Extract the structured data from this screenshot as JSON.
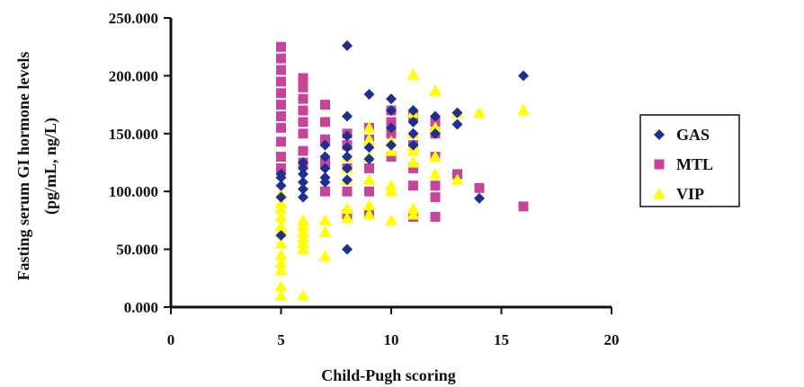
{
  "chart_data": {
    "type": "scatter",
    "xlabel": "Child-Pugh scoring",
    "ylabel_line1": "Fasting serum GI hormone levels",
    "ylabel_line2": "(pg/mL, ng/L)",
    "xlim": [
      0,
      20
    ],
    "ylim": [
      0,
      250
    ],
    "x_ticks": [
      "0",
      "5",
      "10",
      "15",
      "20"
    ],
    "y_ticks": [
      "0.000",
      "50.000",
      "100.000",
      "150.000",
      "200.000",
      "250.000"
    ],
    "grid": false,
    "legend_position": "right",
    "series": [
      {
        "name": "GAS",
        "marker": "diamond",
        "color": "#1f2f8f",
        "points": [
          [
            5,
            62
          ],
          [
            5,
            95
          ],
          [
            5,
            105
          ],
          [
            5,
            115
          ],
          [
            5,
            112
          ],
          [
            6,
            95
          ],
          [
            6,
            102
          ],
          [
            6,
            108
          ],
          [
            6,
            115
          ],
          [
            6,
            120
          ],
          [
            6,
            125
          ],
          [
            7,
            108
          ],
          [
            7,
            112
          ],
          [
            7,
            120
          ],
          [
            7,
            130
          ],
          [
            7,
            140
          ],
          [
            8,
            50
          ],
          [
            8,
            110
          ],
          [
            8,
            120
          ],
          [
            8,
            130
          ],
          [
            8,
            138
          ],
          [
            8,
            148
          ],
          [
            8,
            165
          ],
          [
            8,
            226
          ],
          [
            9,
            128
          ],
          [
            9,
            138
          ],
          [
            9,
            184
          ],
          [
            10,
            140
          ],
          [
            10,
            155
          ],
          [
            10,
            170
          ],
          [
            10,
            180
          ],
          [
            11,
            140
          ],
          [
            11,
            150
          ],
          [
            11,
            160
          ],
          [
            11,
            170
          ],
          [
            12,
            150
          ],
          [
            12,
            165
          ],
          [
            13,
            158
          ],
          [
            13,
            168
          ],
          [
            14,
            94
          ],
          [
            16,
            200
          ]
        ]
      },
      {
        "name": "MTL",
        "marker": "square",
        "color": "#c8449a",
        "points": [
          [
            5,
            225
          ],
          [
            5,
            215
          ],
          [
            5,
            205
          ],
          [
            5,
            195
          ],
          [
            5,
            185
          ],
          [
            5,
            175
          ],
          [
            5,
            165
          ],
          [
            5,
            155
          ],
          [
            5,
            143
          ],
          [
            5,
            130
          ],
          [
            5,
            120
          ],
          [
            6,
            198
          ],
          [
            6,
            190
          ],
          [
            6,
            180
          ],
          [
            6,
            170
          ],
          [
            6,
            160
          ],
          [
            6,
            150
          ],
          [
            6,
            135
          ],
          [
            6,
            125
          ],
          [
            7,
            175
          ],
          [
            7,
            160
          ],
          [
            7,
            145
          ],
          [
            7,
            125
          ],
          [
            7,
            100
          ],
          [
            8,
            150
          ],
          [
            8,
            140
          ],
          [
            8,
            120
          ],
          [
            8,
            100
          ],
          [
            8,
            80
          ],
          [
            9,
            155
          ],
          [
            9,
            145
          ],
          [
            9,
            120
          ],
          [
            9,
            100
          ],
          [
            9,
            80
          ],
          [
            10,
            170
          ],
          [
            10,
            160
          ],
          [
            10,
            150
          ],
          [
            10,
            130
          ],
          [
            11,
            165
          ],
          [
            11,
            140
          ],
          [
            11,
            120
          ],
          [
            11,
            105
          ],
          [
            11,
            78
          ],
          [
            12,
            160
          ],
          [
            12,
            150
          ],
          [
            12,
            130
          ],
          [
            12,
            105
          ],
          [
            12,
            95
          ],
          [
            12,
            78
          ],
          [
            13,
            115
          ],
          [
            14,
            103
          ],
          [
            16,
            87
          ]
        ]
      },
      {
        "name": "VIP",
        "marker": "triangle",
        "color": "#ffff00",
        "points": [
          [
            5,
            98
          ],
          [
            5,
            90
          ],
          [
            5,
            85
          ],
          [
            5,
            78
          ],
          [
            5,
            70
          ],
          [
            5,
            65
          ],
          [
            5,
            55
          ],
          [
            5,
            45
          ],
          [
            5,
            38
          ],
          [
            5,
            32
          ],
          [
            5,
            18
          ],
          [
            5,
            10
          ],
          [
            6,
            75
          ],
          [
            6,
            70
          ],
          [
            6,
            65
          ],
          [
            6,
            60
          ],
          [
            6,
            55
          ],
          [
            6,
            50
          ],
          [
            6,
            10
          ],
          [
            7,
            75
          ],
          [
            7,
            65
          ],
          [
            7,
            44
          ],
          [
            8,
            130
          ],
          [
            8,
            120
          ],
          [
            8,
            110
          ],
          [
            8,
            85
          ],
          [
            8,
            77
          ],
          [
            9,
            155
          ],
          [
            9,
            145
          ],
          [
            9,
            130
          ],
          [
            9,
            110
          ],
          [
            9,
            88
          ],
          [
            9,
            80
          ],
          [
            10,
            143
          ],
          [
            10,
            135
          ],
          [
            10,
            105
          ],
          [
            10,
            100
          ],
          [
            10,
            75
          ],
          [
            11,
            201
          ],
          [
            11,
            168
          ],
          [
            11,
            150
          ],
          [
            11,
            140
          ],
          [
            11,
            135
          ],
          [
            11,
            125
          ],
          [
            11,
            85
          ],
          [
            11,
            80
          ],
          [
            12,
            187
          ],
          [
            12,
            155
          ],
          [
            12,
            130
          ],
          [
            12,
            115
          ],
          [
            13,
            168
          ],
          [
            13,
            110
          ],
          [
            14,
            168
          ],
          [
            16,
            170
          ]
        ]
      }
    ]
  }
}
